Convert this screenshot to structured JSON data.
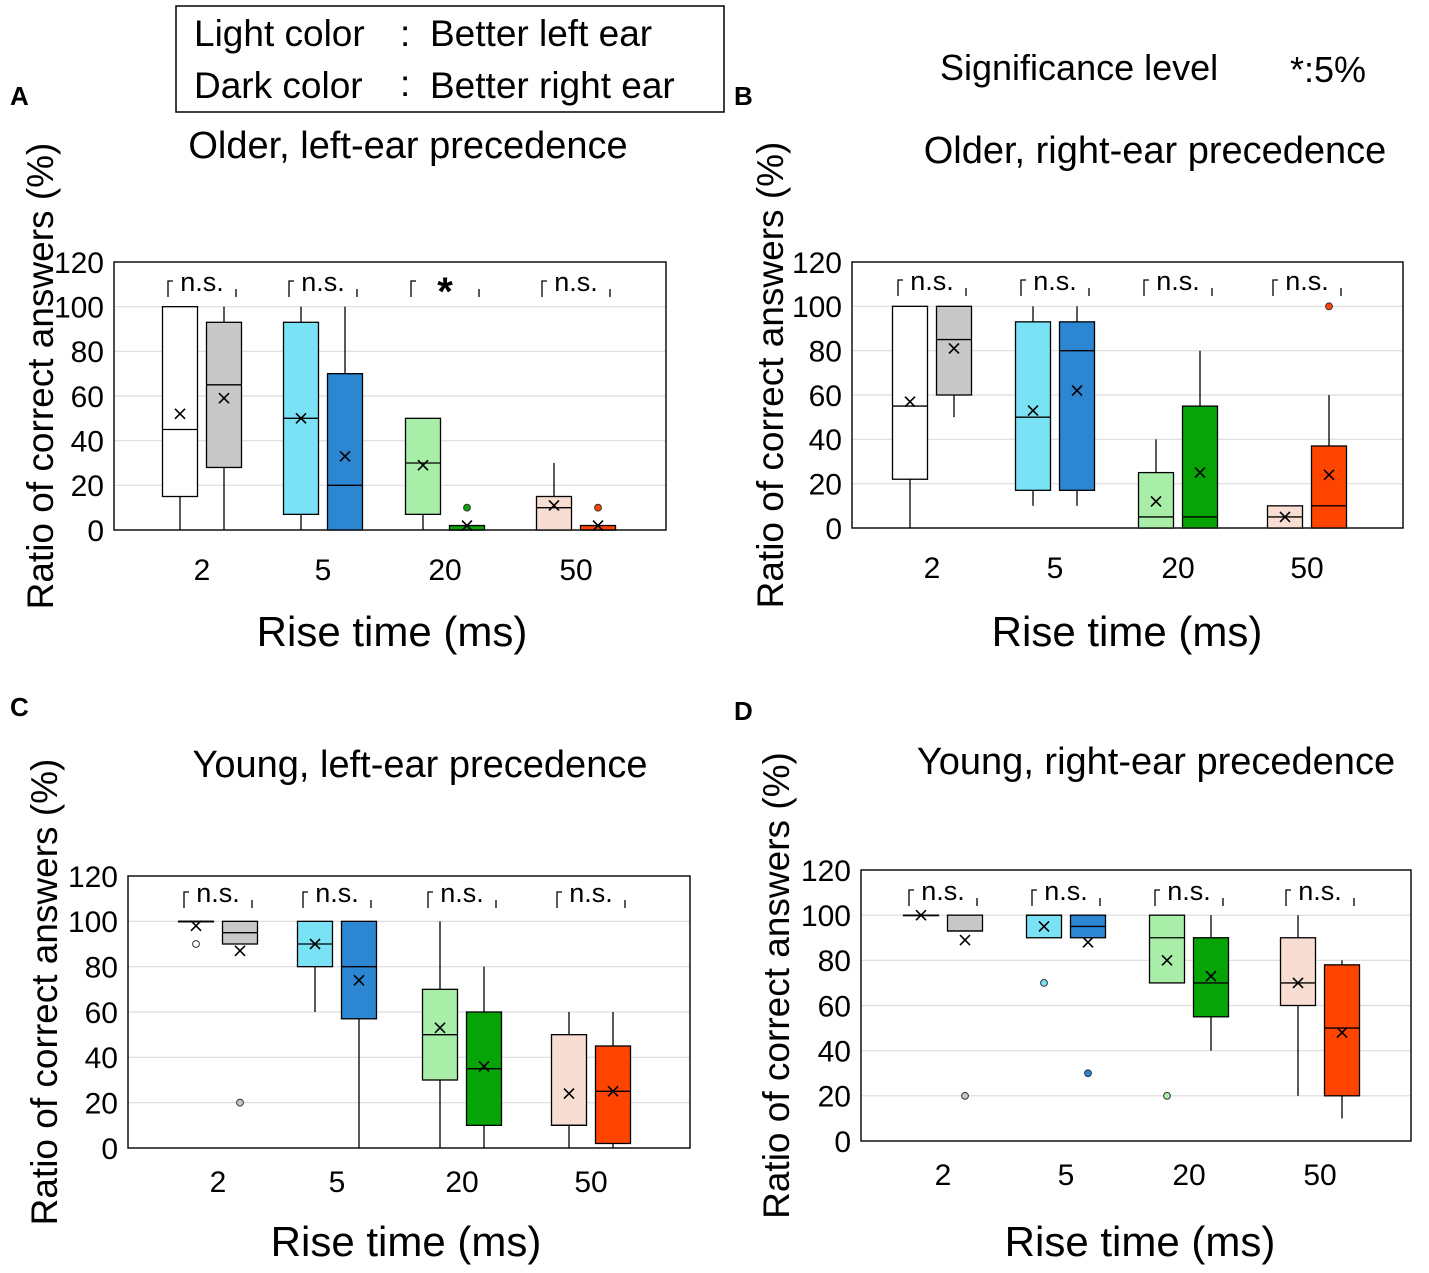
{
  "legend": {
    "light_label": "Light color",
    "light_desc": "Better left ear",
    "dark_label": "Dark color",
    "dark_desc": "Better right ear",
    "sep": ":"
  },
  "significance_level": {
    "label": "Significance level",
    "value": "*:5%"
  },
  "colors": {
    "light": [
      "#ffffff",
      "#79e3f5",
      "#a8eea8",
      "#f8ddd2"
    ],
    "dark": [
      "#c8c8c8",
      "#2c86d2",
      "#06a406",
      "#ff4400"
    ]
  },
  "chart_data": [
    {
      "panel": "A",
      "type": "box",
      "title": "Older, left-ear precedence",
      "xlabel": "Rise time (ms)",
      "ylabel": "Ratio of correct answers (%)",
      "ylim": [
        0,
        120
      ],
      "yticks": [
        "0",
        "20",
        "40",
        "60",
        "80",
        "100",
        "120"
      ],
      "categories": [
        "2",
        "5",
        "20",
        "50"
      ],
      "significance": [
        "n.s.",
        "n.s.",
        "*",
        "n.s."
      ],
      "series": [
        {
          "name": "Better left ear",
          "boxes": [
            {
              "min": 0,
              "q1": 15,
              "median": 45,
              "q3": 100,
              "max": 100,
              "mean": 52,
              "outliers": []
            },
            {
              "min": 0,
              "q1": 7,
              "median": 50,
              "q3": 93,
              "max": 100,
              "mean": 50,
              "outliers": []
            },
            {
              "min": 0,
              "q1": 7,
              "median": 30,
              "q3": 50,
              "max": 50,
              "mean": 29,
              "outliers": []
            },
            {
              "min": 0,
              "q1": 0,
              "median": 10,
              "q3": 15,
              "max": 30,
              "mean": 11,
              "outliers": []
            }
          ]
        },
        {
          "name": "Better right ear",
          "boxes": [
            {
              "min": 0,
              "q1": 28,
              "median": 65,
              "q3": 93,
              "max": 100,
              "mean": 59,
              "outliers": []
            },
            {
              "min": 0,
              "q1": 0,
              "median": 20,
              "q3": 70,
              "max": 100,
              "mean": 33,
              "outliers": []
            },
            {
              "min": 0,
              "q1": 0,
              "median": 0,
              "q3": 2,
              "max": 2,
              "mean": 2,
              "outliers": [
                10
              ]
            },
            {
              "min": 0,
              "q1": 0,
              "median": 0,
              "q3": 2,
              "max": 2,
              "mean": 2,
              "outliers": [
                10
              ]
            }
          ]
        }
      ]
    },
    {
      "panel": "B",
      "type": "box",
      "title": "Older, right-ear precedence",
      "xlabel": "Rise time (ms)",
      "ylabel": "Ratio of correct answers (%)",
      "ylim": [
        0,
        120
      ],
      "yticks": [
        "0",
        "20",
        "40",
        "60",
        "80",
        "100",
        "120"
      ],
      "categories": [
        "2",
        "5",
        "20",
        "50"
      ],
      "significance": [
        "n.s.",
        "n.s.",
        "n.s.",
        "n.s."
      ],
      "series": [
        {
          "name": "Better left ear",
          "boxes": [
            {
              "min": 0,
              "q1": 22,
              "median": 55,
              "q3": 100,
              "max": 100,
              "mean": 57,
              "outliers": []
            },
            {
              "min": 10,
              "q1": 17,
              "median": 50,
              "q3": 93,
              "max": 100,
              "mean": 53,
              "outliers": []
            },
            {
              "min": 0,
              "q1": 0,
              "median": 5,
              "q3": 25,
              "max": 40,
              "mean": 12,
              "outliers": []
            },
            {
              "min": 0,
              "q1": 0,
              "median": 5,
              "q3": 10,
              "max": 10,
              "mean": 5,
              "outliers": []
            }
          ]
        },
        {
          "name": "Better right ear",
          "boxes": [
            {
              "min": 50,
              "q1": 60,
              "median": 85,
              "q3": 100,
              "max": 100,
              "mean": 81,
              "outliers": []
            },
            {
              "min": 10,
              "q1": 17,
              "median": 80,
              "q3": 93,
              "max": 100,
              "mean": 62,
              "outliers": []
            },
            {
              "min": 0,
              "q1": 0,
              "median": 5,
              "q3": 55,
              "max": 80,
              "mean": 25,
              "outliers": []
            },
            {
              "min": 0,
              "q1": 0,
              "median": 10,
              "q3": 37,
              "max": 60,
              "mean": 24,
              "outliers": [
                100
              ]
            }
          ]
        }
      ]
    },
    {
      "panel": "C",
      "type": "box",
      "title": "Young, left-ear precedence",
      "xlabel": "Rise time (ms)",
      "ylabel": "Ratio of correct answers (%)",
      "ylim": [
        0,
        120
      ],
      "yticks": [
        "0",
        "20",
        "40",
        "60",
        "80",
        "100",
        "120"
      ],
      "categories": [
        "2",
        "5",
        "20",
        "50"
      ],
      "significance": [
        "n.s.",
        "n.s.",
        "n.s.",
        "n.s."
      ],
      "series": [
        {
          "name": "Better left ear",
          "boxes": [
            {
              "min": 100,
              "q1": 100,
              "median": 100,
              "q3": 100,
              "max": 100,
              "mean": 98,
              "outliers": [
                90
              ]
            },
            {
              "min": 60,
              "q1": 80,
              "median": 90,
              "q3": 100,
              "max": 100,
              "mean": 90,
              "outliers": []
            },
            {
              "min": 0,
              "q1": 30,
              "median": 50,
              "q3": 70,
              "max": 100,
              "mean": 53,
              "outliers": []
            },
            {
              "min": 0,
              "q1": 10,
              "median": 10,
              "q3": 50,
              "max": 60,
              "mean": 24,
              "outliers": []
            }
          ]
        },
        {
          "name": "Better right ear",
          "boxes": [
            {
              "min": 90,
              "q1": 90,
              "median": 95,
              "q3": 100,
              "max": 100,
              "mean": 87,
              "outliers": [
                20
              ]
            },
            {
              "min": 0,
              "q1": 57,
              "median": 80,
              "q3": 100,
              "max": 100,
              "mean": 74,
              "outliers": []
            },
            {
              "min": 0,
              "q1": 10,
              "median": 35,
              "q3": 60,
              "max": 80,
              "mean": 36,
              "outliers": []
            },
            {
              "min": 0,
              "q1": 2,
              "median": 25,
              "q3": 45,
              "max": 60,
              "mean": 25,
              "outliers": []
            }
          ]
        }
      ]
    },
    {
      "panel": "D",
      "type": "box",
      "title": "Young, right-ear precedence",
      "xlabel": "Rise time (ms)",
      "ylabel": "Ratio of correct answers (%)",
      "ylim": [
        0,
        120
      ],
      "yticks": [
        "0",
        "20",
        "40",
        "60",
        "80",
        "100",
        "120"
      ],
      "categories": [
        "2",
        "5",
        "20",
        "50"
      ],
      "significance": [
        "n.s.",
        "n.s.",
        "n.s.",
        "n.s."
      ],
      "series": [
        {
          "name": "Better left ear",
          "boxes": [
            {
              "min": 100,
              "q1": 100,
              "median": 100,
              "q3": 100,
              "max": 100,
              "mean": 100,
              "outliers": []
            },
            {
              "min": 90,
              "q1": 90,
              "median": 100,
              "q3": 100,
              "max": 100,
              "mean": 95,
              "outliers": [
                70
              ]
            },
            {
              "min": 70,
              "q1": 70,
              "median": 90,
              "q3": 100,
              "max": 100,
              "mean": 80,
              "outliers": [
                20
              ]
            },
            {
              "min": 20,
              "q1": 60,
              "median": 70,
              "q3": 90,
              "max": 100,
              "mean": 70,
              "outliers": []
            }
          ]
        },
        {
          "name": "Better right ear",
          "boxes": [
            {
              "min": 93,
              "q1": 93,
              "median": 93,
              "q3": 100,
              "max": 100,
              "mean": 89,
              "outliers": [
                20
              ]
            },
            {
              "min": 90,
              "q1": 90,
              "median": 95,
              "q3": 100,
              "max": 100,
              "mean": 88,
              "outliers": [
                30
              ]
            },
            {
              "min": 40,
              "q1": 55,
              "median": 70,
              "q3": 90,
              "max": 100,
              "mean": 73,
              "outliers": []
            },
            {
              "min": 10,
              "q1": 20,
              "median": 50,
              "q3": 78,
              "max": 80,
              "mean": 48,
              "outliers": []
            }
          ]
        }
      ]
    }
  ]
}
